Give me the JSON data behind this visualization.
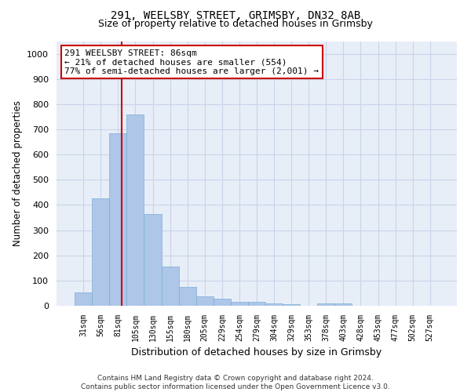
{
  "title_line1": "291, WEELSBY STREET, GRIMSBY, DN32 8AB",
  "title_line2": "Size of property relative to detached houses in Grimsby",
  "xlabel": "Distribution of detached houses by size in Grimsby",
  "ylabel": "Number of detached properties",
  "categories": [
    "31sqm",
    "56sqm",
    "81sqm",
    "105sqm",
    "130sqm",
    "155sqm",
    "180sqm",
    "205sqm",
    "229sqm",
    "254sqm",
    "279sqm",
    "304sqm",
    "329sqm",
    "353sqm",
    "378sqm",
    "403sqm",
    "428sqm",
    "453sqm",
    "477sqm",
    "502sqm",
    "527sqm"
  ],
  "values": [
    52,
    425,
    685,
    760,
    365,
    155,
    75,
    38,
    27,
    16,
    15,
    8,
    7,
    0,
    8,
    8,
    0,
    0,
    0,
    0,
    0
  ],
  "bar_color": "#aec6e8",
  "bar_edge_color": "#7aaed4",
  "bar_width": 1.0,
  "ylim": [
    0,
    1050
  ],
  "yticks": [
    0,
    100,
    200,
    300,
    400,
    500,
    600,
    700,
    800,
    900,
    1000
  ],
  "property_line_color": "#cc0000",
  "annotation_line1": "291 WEELSBY STREET: 86sqm",
  "annotation_line2": "← 21% of detached houses are smaller (554)",
  "annotation_line3": "77% of semi-detached houses are larger (2,001) →",
  "annotation_box_color": "#cc0000",
  "grid_color": "#c8d4e8",
  "background_color": "#e8eef8",
  "footer_line1": "Contains HM Land Registry data © Crown copyright and database right 2024.",
  "footer_line2": "Contains public sector information licensed under the Open Government Licence v3.0."
}
